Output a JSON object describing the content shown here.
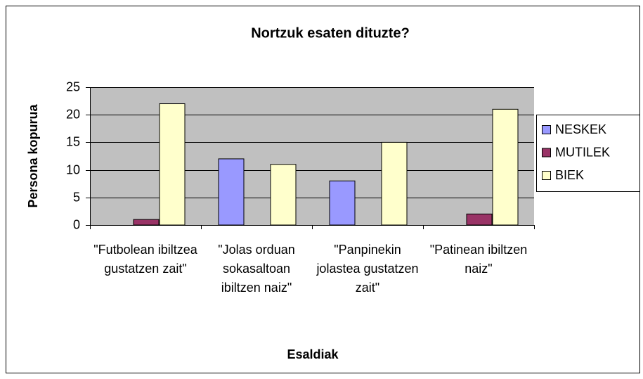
{
  "chart_data": {
    "type": "bar",
    "title": "Nortzuk esaten dituzte?",
    "x_label": "Esaldiak",
    "y_label": "Persona kopurua",
    "categories": [
      "\"Futbolean ibiltzea gustatzen zait\"",
      "\"Jolas orduan sokasaltoan ibiltzen naiz\"",
      "\"Panpinekin jolastea gustatzen zait\"",
      "\"Patinean ibiltzen naiz\""
    ],
    "series": [
      {
        "name": "NESKEK",
        "color": "#9999ff",
        "values": [
          0,
          12,
          8,
          0
        ]
      },
      {
        "name": "MUTILEK",
        "color": "#993366",
        "values": [
          1,
          0,
          0,
          2
        ]
      },
      {
        "name": "BIEK",
        "color": "#ffffcc",
        "values": [
          22,
          11,
          15,
          21
        ]
      }
    ],
    "ylim": [
      0,
      25
    ],
    "yticks": [
      0,
      5,
      10,
      15,
      20,
      25
    ],
    "grid": true,
    "plot_background": "#c0c0c0",
    "legend": "right"
  }
}
